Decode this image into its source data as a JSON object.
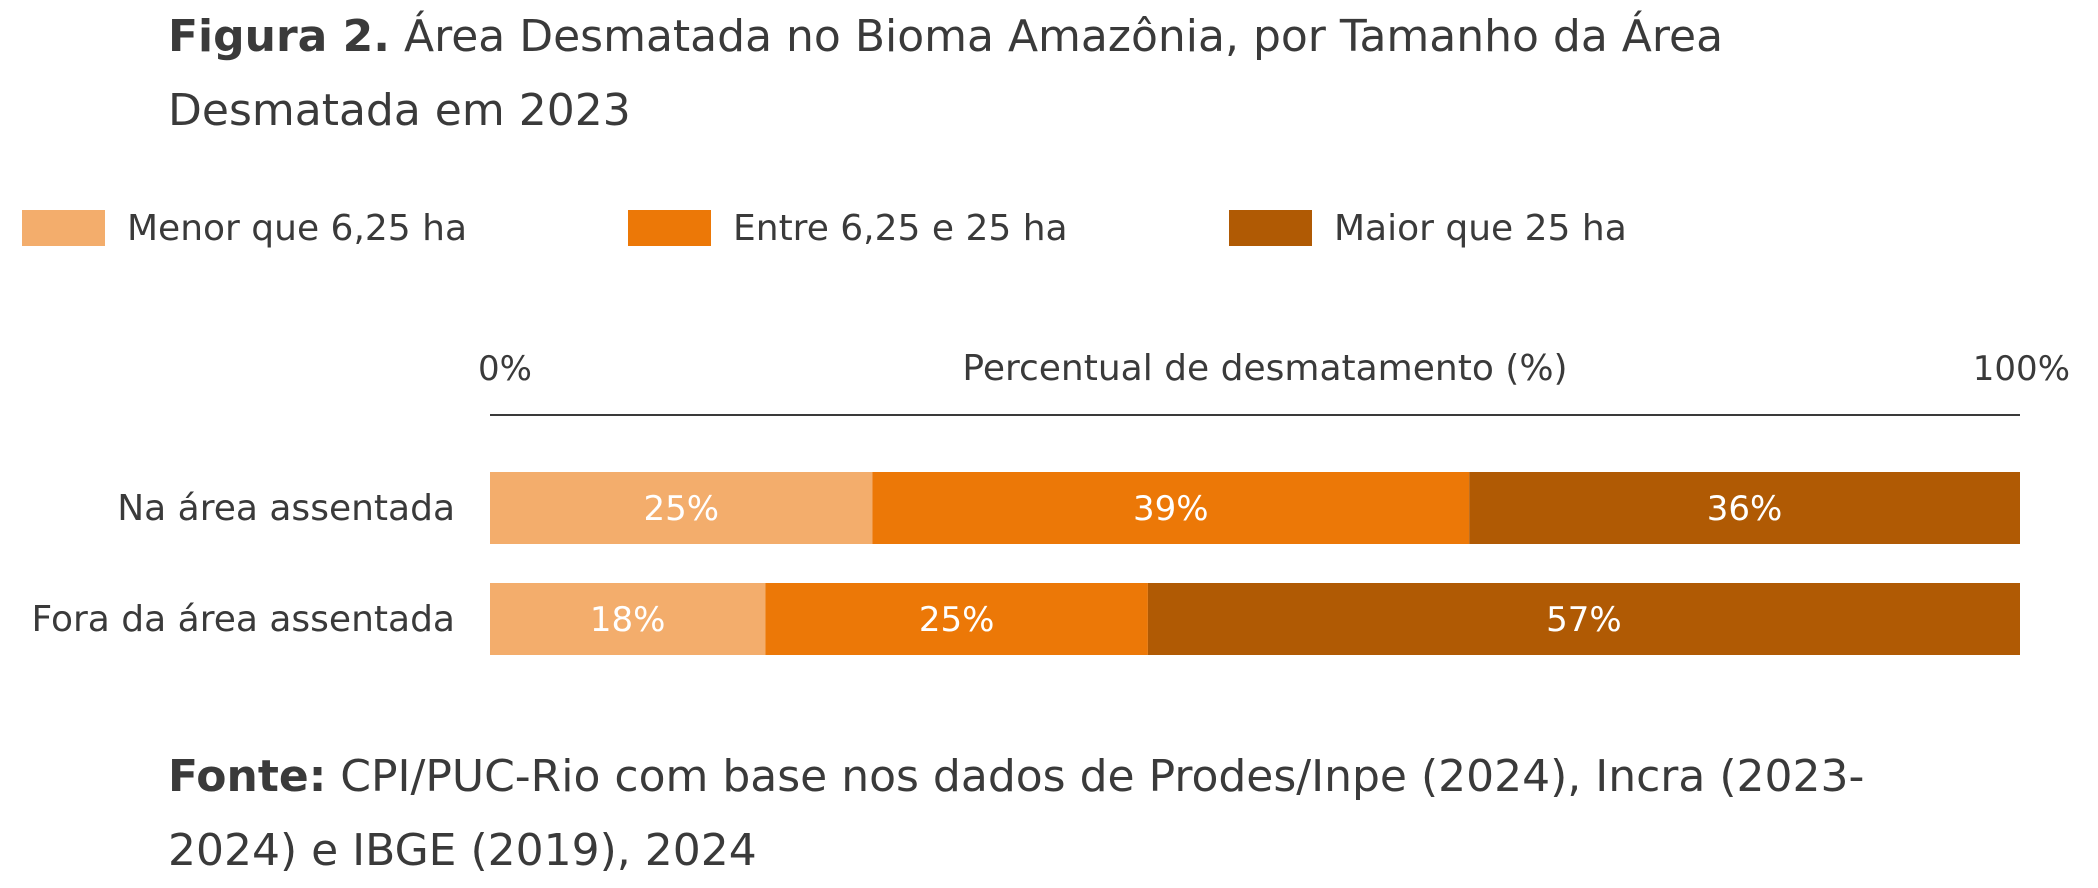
{
  "figure": {
    "title_lead": "Figura 2.",
    "title_text": " Área Desmatada no Bioma Amazônia, por Tamanho da Área Desmatada em 2023",
    "source_lead": "Fonte:",
    "source_text": " CPI/PUC-Rio com base nos dados de Prodes/Inpe (2024), Incra (2023-2024) e IBGE (2019), 2024"
  },
  "colors": {
    "small": "#f3ad6c",
    "medium": "#ec7807",
    "large": "#b05a04",
    "axis": "#3a3a3a",
    "bar_label": "#ffffff"
  },
  "chart_data": {
    "type": "bar",
    "orientation": "horizontal",
    "stacked": true,
    "xlabel": "Percentual de desmatamento (%)",
    "xlim": [
      0,
      100
    ],
    "x_tick_labels": [
      "0%",
      "100%"
    ],
    "legend_position": "top",
    "grid": false,
    "categories": [
      "Na área assentada",
      "Fora da área assentada"
    ],
    "series": [
      {
        "name": "Menor que 6,25 ha",
        "values": [
          25,
          18
        ],
        "labels": [
          "25%",
          "18%"
        ],
        "color": "#f3ad6c"
      },
      {
        "name": "Entre 6,25 e 25 ha",
        "values": [
          39,
          25
        ],
        "labels": [
          "39%",
          "25%"
        ],
        "color": "#ec7807"
      },
      {
        "name": "Maior que 25 ha",
        "values": [
          36,
          57
        ],
        "labels": [
          "36%",
          "57%"
        ],
        "color": "#b05a04"
      }
    ]
  }
}
